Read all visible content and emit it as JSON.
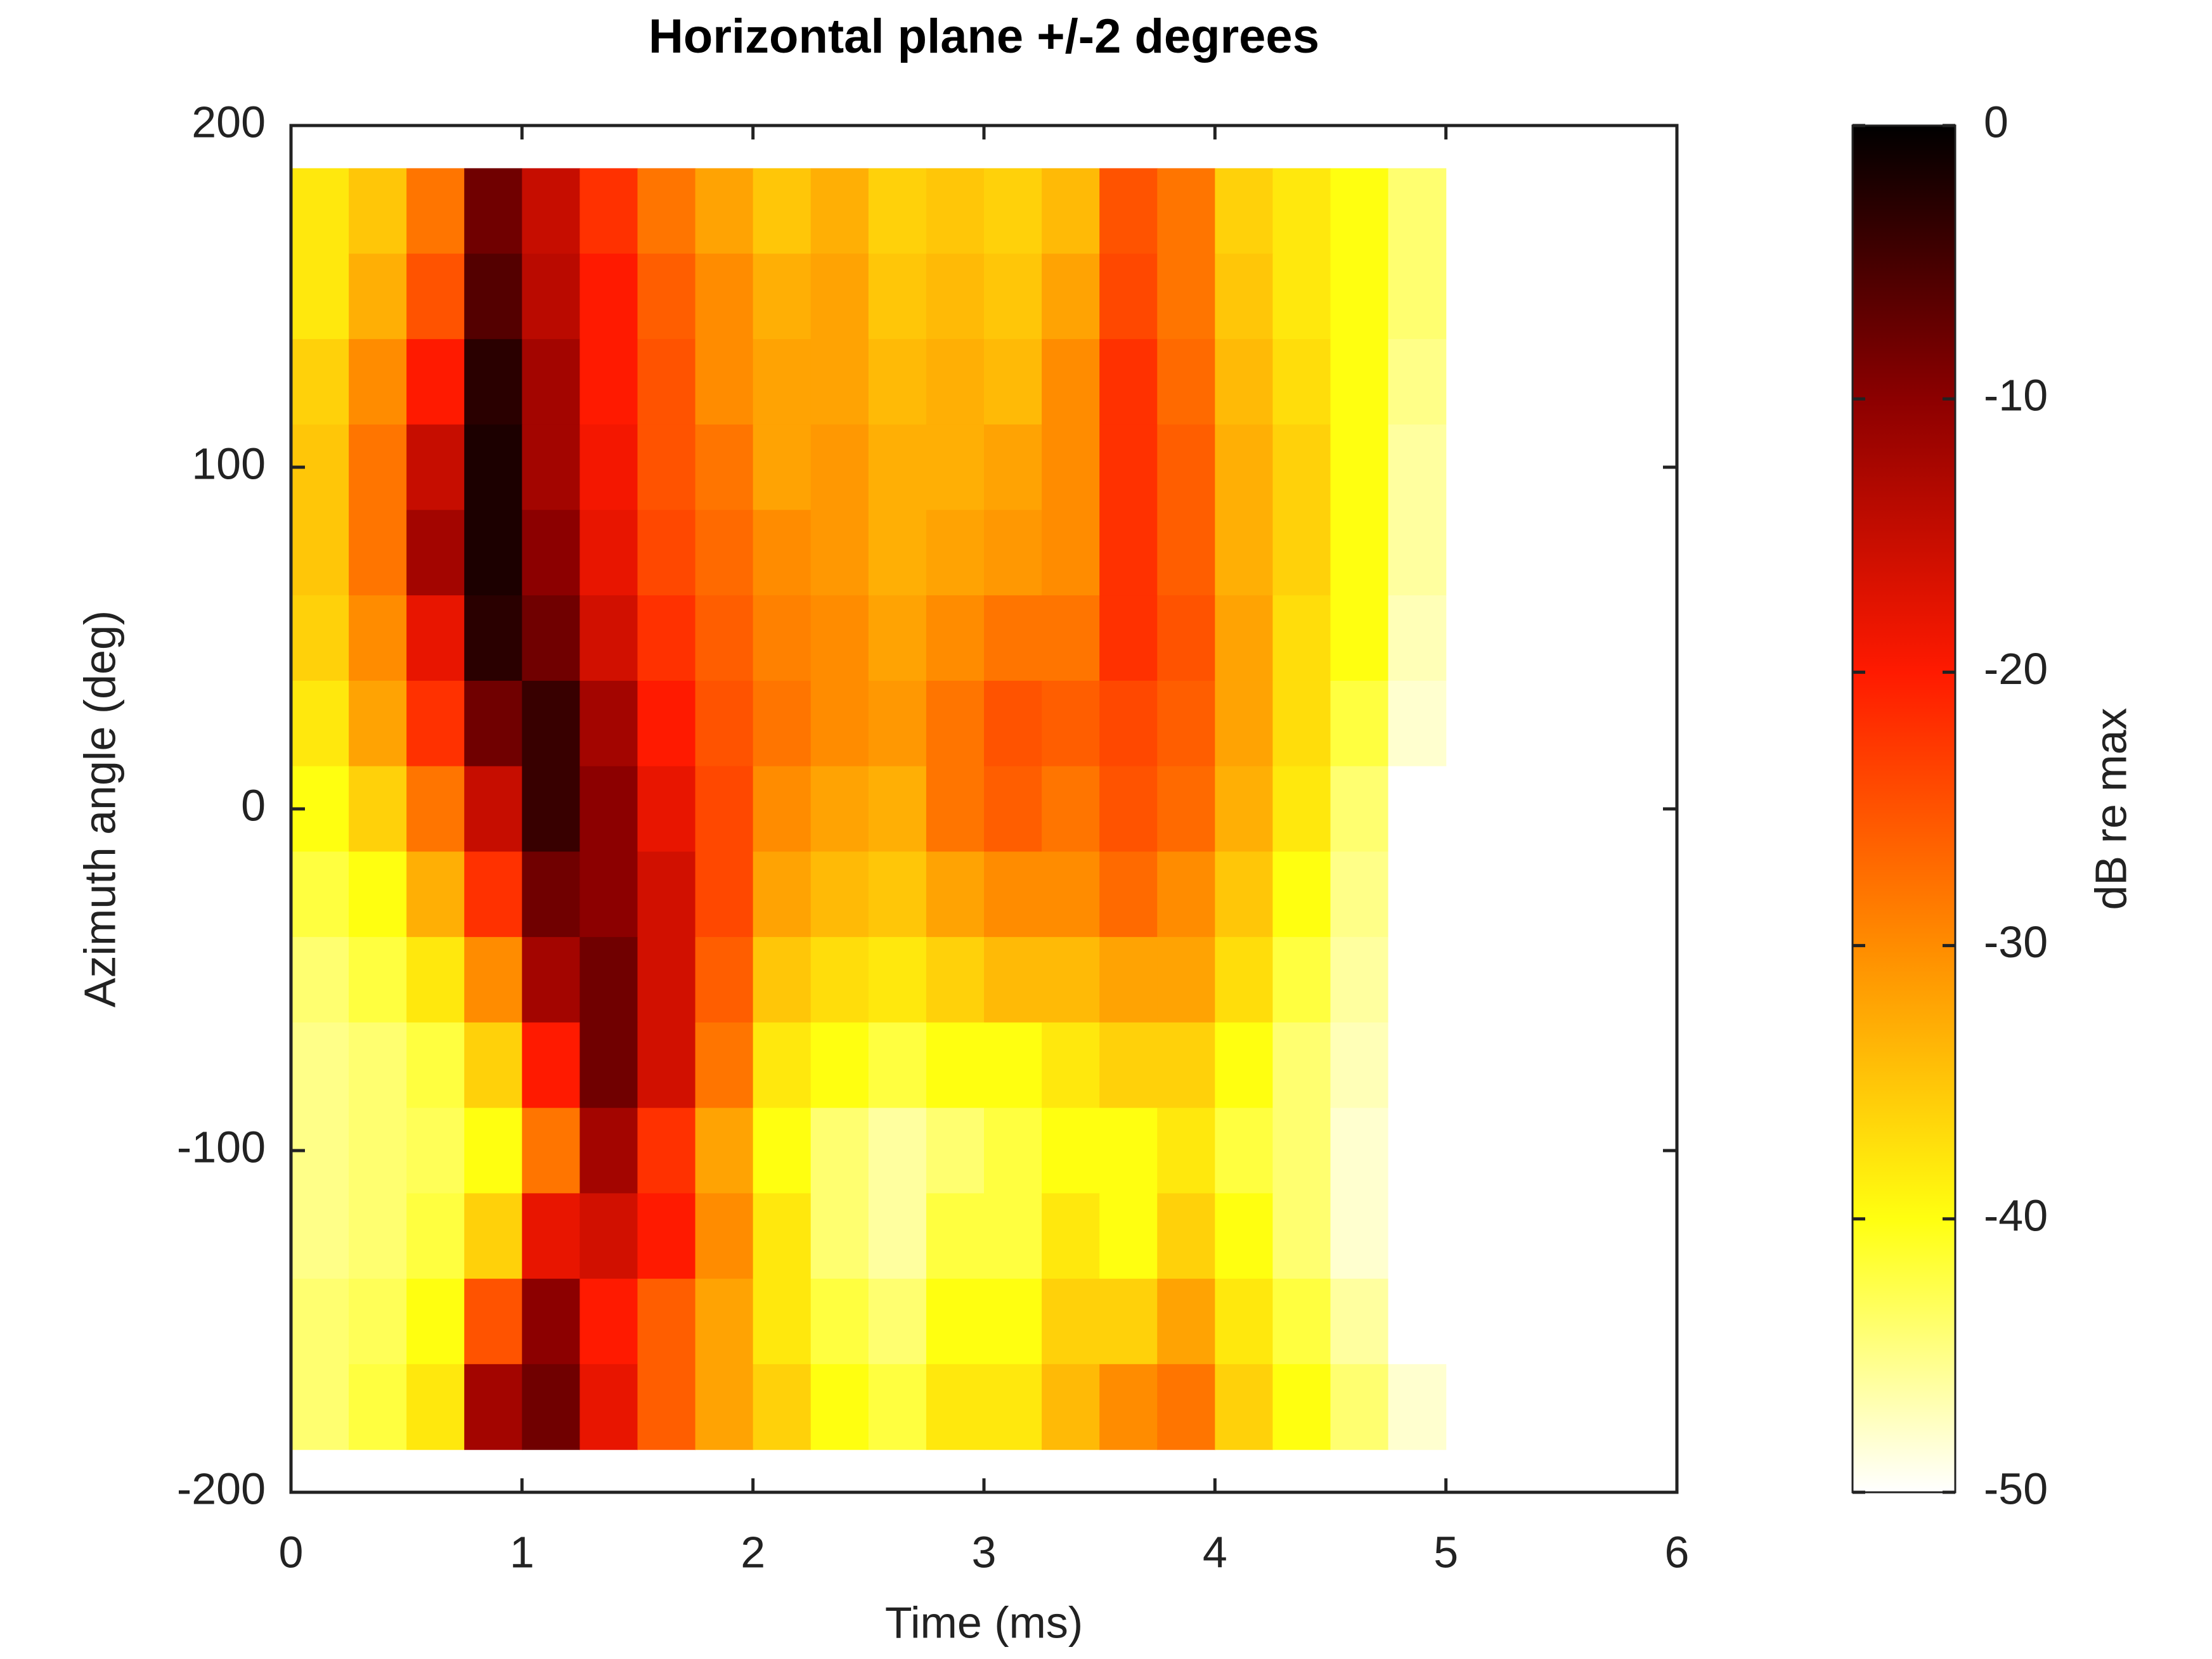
{
  "chart_data": {
    "type": "heatmap",
    "title": "Horizontal plane +/-2 degrees",
    "xlabel": "Time (ms)",
    "ylabel": "Azimuth angle (deg)",
    "colorbar_label": "dB re max",
    "x": [
      0.125,
      0.375,
      0.625,
      0.875,
      1.125,
      1.375,
      1.625,
      1.875,
      2.125,
      2.375,
      2.625,
      2.875,
      3.125,
      3.375,
      3.625,
      3.875,
      4.125,
      4.375,
      4.625,
      4.875
    ],
    "y": [
      175,
      150,
      125,
      100,
      75,
      50,
      25,
      0,
      -25,
      -50,
      -75,
      -100,
      -125,
      -150,
      -175
    ],
    "z": [
      [
        -38,
        -35,
        -28,
        -8,
        -15,
        -22,
        -28,
        -32,
        -35,
        -33,
        -36,
        -35,
        -36,
        -34,
        -25,
        -28,
        -36,
        -38,
        -40,
        -44
      ],
      [
        -38,
        -33,
        -25,
        -6,
        -14,
        -20,
        -26,
        -30,
        -33,
        -32,
        -35,
        -34,
        -35,
        -32,
        -24,
        -28,
        -35,
        -38,
        -40,
        -44
      ],
      [
        -36,
        -30,
        -20,
        -3,
        -12,
        -20,
        -25,
        -30,
        -32,
        -32,
        -34,
        -33,
        -34,
        -30,
        -22,
        -27,
        -34,
        -37,
        -40,
        -45
      ],
      [
        -35,
        -28,
        -15,
        -2,
        -12,
        -19,
        -25,
        -28,
        -32,
        -31,
        -33,
        -33,
        -32,
        -30,
        -22,
        -26,
        -33,
        -36,
        -40,
        -46
      ],
      [
        -35,
        -28,
        -12,
        -2,
        -10,
        -18,
        -24,
        -27,
        -30,
        -31,
        -33,
        -32,
        -31,
        -30,
        -22,
        -26,
        -33,
        -36,
        -40,
        -46
      ],
      [
        -36,
        -30,
        -18,
        -3,
        -8,
        -16,
        -22,
        -26,
        -29,
        -30,
        -32,
        -30,
        -28,
        -28,
        -22,
        -25,
        -32,
        -37,
        -40,
        -47
      ],
      [
        -38,
        -32,
        -22,
        -8,
        -4,
        -12,
        -20,
        -25,
        -28,
        -30,
        -31,
        -28,
        -25,
        -26,
        -24,
        -26,
        -32,
        -37,
        -42,
        -48
      ],
      [
        -40,
        -36,
        -28,
        -15,
        -4,
        -10,
        -18,
        -24,
        -30,
        -32,
        -33,
        -28,
        -26,
        -28,
        -25,
        -27,
        -33,
        -38,
        -44,
        -50
      ],
      [
        -42,
        -40,
        -33,
        -22,
        -8,
        -10,
        -16,
        -24,
        -32,
        -34,
        -35,
        -32,
        -30,
        -30,
        -27,
        -30,
        -35,
        -40,
        -45,
        -50
      ],
      [
        -44,
        -42,
        -38,
        -30,
        -12,
        -8,
        -16,
        -26,
        -35,
        -37,
        -38,
        -36,
        -34,
        -34,
        -32,
        -32,
        -37,
        -42,
        -46,
        -50
      ],
      [
        -45,
        -44,
        -42,
        -36,
        -20,
        -8,
        -16,
        -28,
        -38,
        -40,
        -42,
        -40,
        -40,
        -38,
        -36,
        -36,
        -40,
        -44,
        -47,
        -50
      ],
      [
        -45,
        -44,
        -43,
        -40,
        -28,
        -12,
        -22,
        -32,
        -40,
        -44,
        -46,
        -44,
        -42,
        -40,
        -40,
        -38,
        -42,
        -44,
        -48,
        -50
      ],
      [
        -45,
        -44,
        -42,
        -36,
        -18,
        -16,
        -20,
        -30,
        -38,
        -44,
        -46,
        -42,
        -42,
        -38,
        -40,
        -36,
        -40,
        -44,
        -48,
        -50
      ],
      [
        -44,
        -43,
        -40,
        -25,
        -10,
        -20,
        -26,
        -32,
        -38,
        -42,
        -44,
        -40,
        -40,
        -36,
        -36,
        -32,
        -38,
        -42,
        -46,
        -50
      ],
      [
        -44,
        -42,
        -38,
        -12,
        -8,
        -18,
        -26,
        -32,
        -36,
        -40,
        -42,
        -38,
        -38,
        -34,
        -30,
        -28,
        -36,
        -40,
        -44,
        -48
      ]
    ],
    "xlim": [
      0,
      6
    ],
    "xticks": [
      0,
      1,
      2,
      3,
      4,
      5,
      6
    ],
    "ylim": [
      -200,
      200
    ],
    "yticks": [
      -200,
      -100,
      0,
      100,
      200
    ],
    "clim": [
      -50,
      0
    ],
    "cticks": [
      -50,
      -40,
      -30,
      -20,
      -10,
      0
    ],
    "colormap": [
      "#ffffff",
      "#ffff10",
      "#ff8c00",
      "#ff1a00",
      "#8c0000",
      "#000000"
    ]
  }
}
